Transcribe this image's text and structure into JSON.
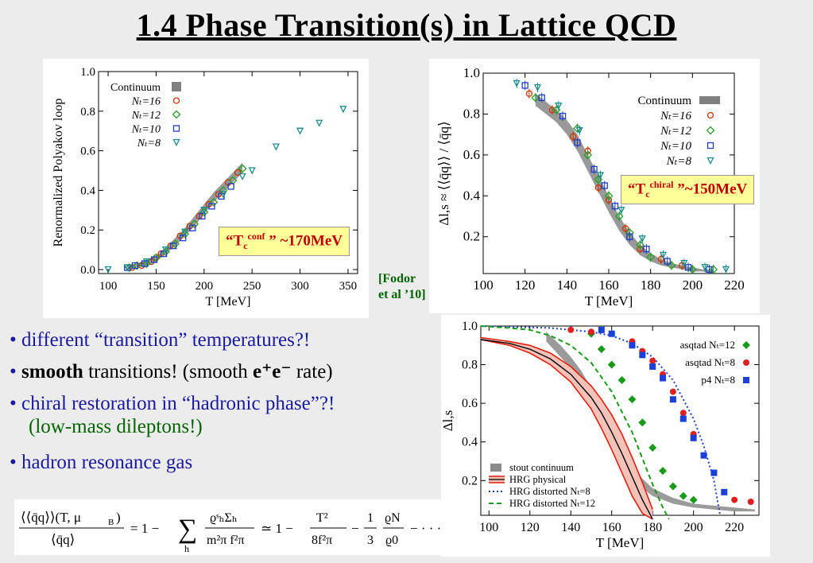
{
  "slide": {
    "title": "1.4  Phase Transition(s) in Lattice QCD",
    "callout_conf": {
      "pre": "“T",
      "sub": "c",
      "sup": "conf",
      "post": " ” ~170MeV"
    },
    "callout_chiral": {
      "pre": "“T",
      "sub": "c",
      "sup": "chiral",
      "post": " ”~150MeV"
    },
    "citation": [
      "[Fodor",
      " et al ’10]"
    ],
    "bullets": {
      "b1": "• different “transition” temperatures?!",
      "b2_pre": "• ",
      "b2_bold": "smooth",
      "b2_mid": " transitions!  (smooth ",
      "b2_ee": "e⁺e⁻",
      "b2_post": " rate)",
      "b3": "• chiral restoration in “hadronic phase”?!",
      "b3_sub": "(low-mass dileptons!)",
      "b4": "• hadron resonance gas"
    },
    "formula": {
      "lhs_num": "⟨⟨q̄q⟩⟩(T, μ",
      "lhs_num_sub": "B",
      "lhs_den": "⟨q̄q⟩",
      "eq": "=  1 −",
      "sum": "∑",
      "sum_sub": "h",
      "frac1_num": "ϱˢₕΣₕ",
      "frac1_den": "m²π f²π",
      "approx": "≃  1 −",
      "frac2_num": "T²",
      "frac2_den": "8f²π",
      "minus": "−",
      "frac3_num": "1",
      "frac3_den": "3",
      "frac4_num": "ϱN",
      "frac4_den": "ϱ0",
      "tail": "− · · ·"
    }
  },
  "chart_data": [
    {
      "type": "scatter",
      "xlabel": "T [MeV]",
      "ylabel": "Renormalized Polyakov loop",
      "xlim": [
        90,
        360
      ],
      "ylim": [
        -0.02,
        1.0
      ],
      "xticks": [
        100,
        150,
        200,
        250,
        300,
        350
      ],
      "yticks": [
        0.0,
        0.2,
        0.4,
        0.6,
        0.8,
        1.0
      ],
      "legend_position": "top-left",
      "colors": {
        "continuum": "#808080",
        "nt16": "#cc3300",
        "nt12": "#2a9d2a",
        "nt10": "#1f3fbf",
        "nt8": "#1a8a8a"
      },
      "series": [
        {
          "name": "Continuum",
          "style": "band",
          "x": [
            120,
            130,
            140,
            150,
            160,
            170,
            180,
            190,
            200,
            210,
            220,
            230,
            240
          ],
          "lo": [
            0.0,
            0.01,
            0.02,
            0.04,
            0.08,
            0.12,
            0.17,
            0.22,
            0.28,
            0.34,
            0.39,
            0.44,
            0.49
          ],
          "hi": [
            0.02,
            0.03,
            0.05,
            0.07,
            0.11,
            0.16,
            0.21,
            0.27,
            0.33,
            0.39,
            0.44,
            0.49,
            0.54
          ]
        },
        {
          "name": "Nₜ=16",
          "marker": "circle",
          "x": [
            125,
            135,
            145,
            150,
            155,
            165,
            175,
            185,
            195,
            205,
            215,
            225,
            235
          ],
          "y": [
            0.01,
            0.02,
            0.04,
            0.06,
            0.08,
            0.12,
            0.17,
            0.22,
            0.27,
            0.33,
            0.38,
            0.44,
            0.49
          ]
        },
        {
          "name": "Nₜ=12",
          "marker": "diamond",
          "x": [
            122,
            130,
            140,
            150,
            160,
            170,
            180,
            190,
            200,
            210,
            220,
            230,
            240
          ],
          "y": [
            0.01,
            0.02,
            0.03,
            0.06,
            0.09,
            0.13,
            0.18,
            0.23,
            0.29,
            0.34,
            0.4,
            0.45,
            0.51
          ]
        },
        {
          "name": "Nₜ=10",
          "marker": "square",
          "x": [
            120,
            128,
            138,
            148,
            158,
            168,
            178,
            188,
            198,
            208,
            218,
            228
          ],
          "y": [
            0.01,
            0.02,
            0.03,
            0.05,
            0.08,
            0.12,
            0.16,
            0.21,
            0.27,
            0.32,
            0.37,
            0.42
          ]
        },
        {
          "name": "Nₜ=8",
          "marker": "triangle",
          "x": [
            100,
            120,
            140,
            160,
            180,
            200,
            220,
            240,
            250,
            275,
            300,
            320,
            345
          ],
          "y": [
            0.0,
            0.01,
            0.04,
            0.1,
            0.19,
            0.3,
            0.38,
            0.47,
            0.5,
            0.62,
            0.7,
            0.74,
            0.81
          ]
        }
      ]
    },
    {
      "type": "scatter",
      "xlabel": "T [MeV]",
      "ylabel": "Δl,s ≈ ⟨⟨q̄q⟩⟩ / ⟨q̄q⟩",
      "xlim": [
        100,
        220
      ],
      "ylim": [
        0.02,
        1.0
      ],
      "xticks": [
        100,
        120,
        140,
        160,
        180,
        200,
        220
      ],
      "yticks": [
        0.2,
        0.4,
        0.6,
        0.8,
        1.0
      ],
      "legend_position": "top-right",
      "colors": {
        "continuum": "#808080",
        "nt16": "#cc3300",
        "nt12": "#2a9d2a",
        "nt10": "#1f3fbf",
        "nt8": "#1a8a8a"
      },
      "series": [
        {
          "name": "Continuum",
          "style": "band",
          "x": [
            125,
            130,
            135,
            140,
            145,
            150,
            155,
            160,
            165,
            170,
            175,
            180,
            185,
            190,
            195,
            200,
            205,
            210
          ],
          "lo": [
            0.84,
            0.8,
            0.76,
            0.7,
            0.62,
            0.52,
            0.42,
            0.32,
            0.23,
            0.16,
            0.11,
            0.08,
            0.06,
            0.05,
            0.04,
            0.03,
            0.03,
            0.02
          ],
          "hi": [
            0.9,
            0.86,
            0.82,
            0.77,
            0.7,
            0.6,
            0.5,
            0.4,
            0.3,
            0.22,
            0.16,
            0.12,
            0.09,
            0.07,
            0.06,
            0.05,
            0.04,
            0.04
          ]
        },
        {
          "name": "Nₜ=16",
          "marker": "circle",
          "x": [
            122,
            133,
            143,
            150,
            155,
            160,
            168,
            175,
            185,
            195
          ],
          "y": [
            0.9,
            0.82,
            0.69,
            0.62,
            0.44,
            0.38,
            0.24,
            0.14,
            0.09,
            0.06
          ]
        },
        {
          "name": "Nₜ=12",
          "marker": "diamond",
          "x": [
            125,
            135,
            145,
            150,
            155,
            160,
            165,
            170,
            175,
            180,
            190,
            200,
            210
          ],
          "y": [
            0.88,
            0.82,
            0.73,
            0.6,
            0.48,
            0.4,
            0.3,
            0.22,
            0.16,
            0.1,
            0.06,
            0.04,
            0.04
          ]
        },
        {
          "name": "Nₜ=10",
          "marker": "square",
          "x": [
            120,
            128,
            138,
            145,
            153,
            158,
            163,
            170,
            178,
            188,
            198,
            208
          ],
          "y": [
            0.94,
            0.88,
            0.79,
            0.66,
            0.53,
            0.45,
            0.35,
            0.2,
            0.14,
            0.08,
            0.05,
            0.04
          ]
        },
        {
          "name": "Nₜ=8",
          "marker": "triangle",
          "x": [
            116,
            126,
            136,
            146,
            156,
            166,
            176,
            186,
            196,
            206,
            216
          ],
          "y": [
            0.95,
            0.93,
            0.84,
            0.72,
            0.5,
            0.33,
            0.19,
            0.11,
            0.07,
            0.05,
            0.04
          ]
        }
      ]
    },
    {
      "type": "line",
      "xlabel": "T [MeV]",
      "ylabel": "Δl,s",
      "xlim": [
        96,
        232
      ],
      "ylim": [
        0.02,
        1.0
      ],
      "xticks": [
        100,
        120,
        140,
        160,
        180,
        200,
        220
      ],
      "yticks": [
        0.2,
        0.4,
        0.6,
        0.8,
        1.0
      ],
      "legend_position": "top-right and bottom-left",
      "colors": {
        "stout": "#8a8a8a",
        "hrg_phys": "#e02010",
        "hrg_band": "#f3c2b8",
        "hrg8": "#1a3fd0",
        "hrg12": "#1a9a1a",
        "asq12": "#1a9a1a",
        "asq8": "#e02020",
        "p4": "#1a40d8"
      },
      "series": [
        {
          "name": "stout continuum",
          "style": "band",
          "x": [
            128,
            135,
            140,
            145,
            150,
            155,
            160,
            165,
            170,
            175,
            180,
            190,
            200,
            210,
            220,
            230
          ],
          "lo": [
            0.92,
            0.84,
            0.78,
            0.7,
            0.61,
            0.5,
            0.4,
            0.3,
            0.22,
            0.16,
            0.12,
            0.08,
            0.06,
            0.05,
            0.04,
            0.04
          ],
          "hi": [
            0.97,
            0.9,
            0.84,
            0.77,
            0.68,
            0.58,
            0.47,
            0.37,
            0.28,
            0.21,
            0.16,
            0.11,
            0.08,
            0.07,
            0.06,
            0.05
          ]
        },
        {
          "name": "HRG physical",
          "style": "band-line",
          "x": [
            96,
            110,
            120,
            130,
            140,
            150,
            155,
            160,
            165,
            170,
            175,
            180
          ],
          "lo": [
            0.93,
            0.9,
            0.86,
            0.8,
            0.71,
            0.57,
            0.47,
            0.36,
            0.24,
            0.12,
            0.03,
            0.0
          ],
          "mid": [
            0.93,
            0.91,
            0.88,
            0.83,
            0.75,
            0.63,
            0.55,
            0.45,
            0.34,
            0.22,
            0.1,
            0.0
          ],
          "hi": [
            0.94,
            0.92,
            0.9,
            0.86,
            0.79,
            0.69,
            0.62,
            0.54,
            0.44,
            0.32,
            0.19,
            0.05
          ]
        },
        {
          "name": "HRG distorted Nₜ=8",
          "style": "dotted",
          "x": [
            96,
            130,
            150,
            160,
            170,
            180,
            190,
            200,
            205,
            210,
            213
          ],
          "y": [
            1.0,
            0.99,
            0.97,
            0.95,
            0.91,
            0.84,
            0.72,
            0.52,
            0.38,
            0.2,
            0.02
          ]
        },
        {
          "name": "HRG distorted Nₜ=12",
          "style": "dashed",
          "x": [
            96,
            110,
            120,
            130,
            140,
            150,
            160,
            170,
            180,
            185,
            188
          ],
          "y": [
            1.0,
            0.99,
            0.98,
            0.95,
            0.9,
            0.81,
            0.66,
            0.45,
            0.18,
            0.06,
            0.0
          ]
        },
        {
          "name": "asqtad Nₜ=12",
          "marker": "diamond",
          "x": [
            150,
            155,
            160,
            165,
            170,
            175,
            180,
            185,
            190,
            195,
            200
          ],
          "y": [
            0.96,
            0.88,
            0.8,
            0.72,
            0.62,
            0.5,
            0.37,
            0.25,
            0.17,
            0.12,
            0.1
          ]
        },
        {
          "name": "asqtad Nₜ=8",
          "marker": "circle",
          "x": [
            140,
            150,
            160,
            170,
            175,
            180,
            185,
            190,
            195,
            200,
            210,
            220,
            228
          ],
          "y": [
            0.98,
            0.97,
            0.96,
            0.92,
            0.87,
            0.82,
            0.75,
            0.66,
            0.55,
            0.44,
            0.24,
            0.1,
            0.09
          ]
        },
        {
          "name": "p4 Nₜ=8",
          "marker": "square",
          "x": [
            155,
            160,
            170,
            175,
            180,
            185,
            190,
            195,
            200,
            205,
            210,
            215
          ],
          "y": [
            0.98,
            0.96,
            0.9,
            0.85,
            0.79,
            0.73,
            0.62,
            0.52,
            0.42,
            0.33,
            0.24,
            0.14
          ]
        }
      ]
    }
  ]
}
